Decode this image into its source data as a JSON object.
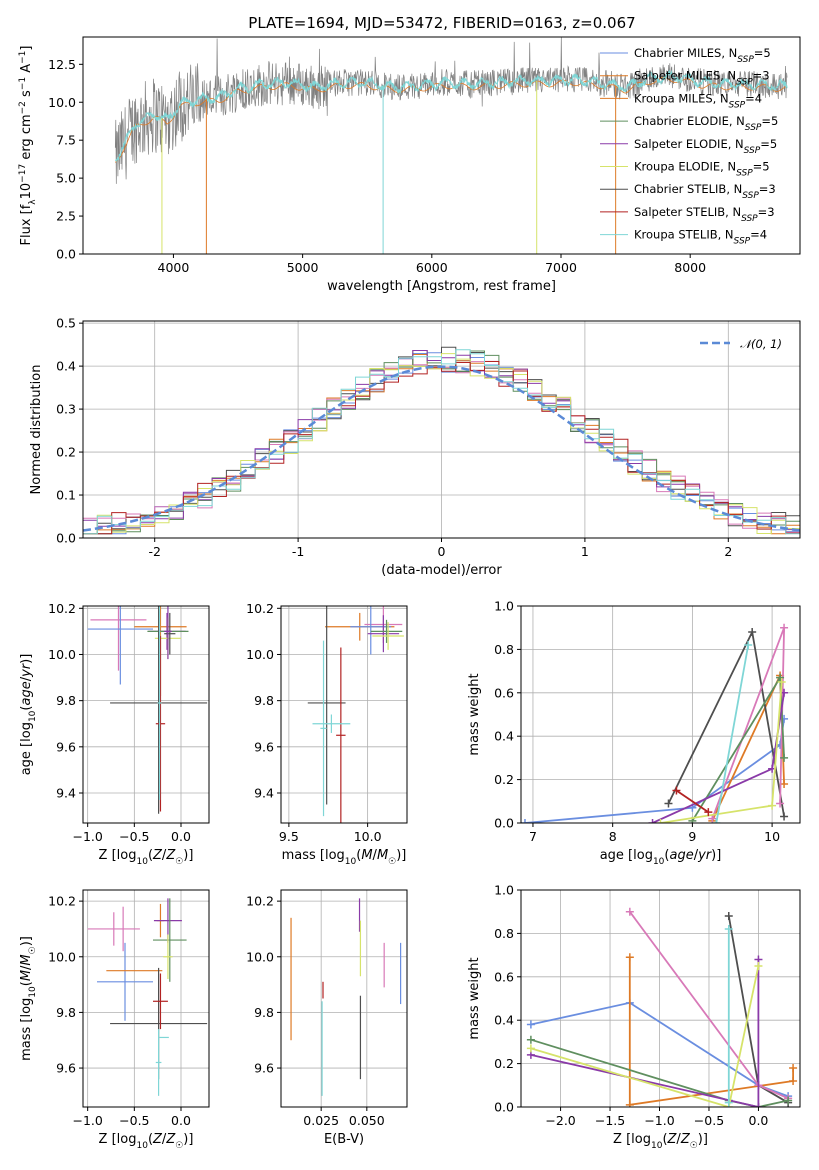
{
  "figure_title": "PLATE=1694, MJD=53472, FIBERID=0163, z=0.067",
  "model_colors": [
    "#6a8ee0",
    "#de7a26",
    "#4f4f4f",
    "#d879b8",
    "#5f8f5f",
    "#8a3aa8",
    "#d6e36a",
    "#b22222",
    "#7fd6d6"
  ],
  "chart_data": [
    {
      "id": "spectrum",
      "type": "line",
      "xlabel": "wavelength [Angstrom, rest frame]",
      "ylabel": "Flux [fλ10⁻¹⁷ erg cm⁻² s⁻¹ A⁻¹]",
      "xlim": [
        3300,
        8850
      ],
      "ylim": [
        0,
        14.3
      ],
      "xticks": [
        4000,
        5000,
        6000,
        7000,
        8000
      ],
      "yticks": [
        0.0,
        2.5,
        5.0,
        7.5,
        10.0,
        12.5
      ],
      "ytick_labels": [
        "0.0",
        "2.5",
        "5.0",
        "7.5",
        "10.0",
        "12.5"
      ],
      "legend": [
        "Chabrier MILES, N_SSP=5",
        "Salpeter MILES, N_SSP=3",
        "Kroupa MILES, N_SSP=4",
        "Chabrier ELODIE, N_SSP=5",
        "Salpeter ELODIE, N_SSP=5",
        "Kroupa ELODIE, N_SSP=5",
        "Chabrier STELIB, N_SSP=3",
        "Salpeter STELIB, N_SSP=3",
        "Kroupa STELIB, N_SSP=4"
      ],
      "legend_position": "top-right",
      "legend_colors": [
        "#6a8ee0",
        "#de7a26",
        "#de7a26",
        "#5f8f5f",
        "#8a3aa8",
        "#d6e36a",
        "#4f4f4f",
        "#b22222",
        "#7fd6d6"
      ],
      "data_color": "#808080",
      "model_color": "#7fd6d6",
      "continuum": [
        [
          3550,
          6.2
        ],
        [
          3700,
          8.5
        ],
        [
          3850,
          9.2
        ],
        [
          3950,
          8.8
        ],
        [
          4050,
          9.9
        ],
        [
          4200,
          10.2
        ],
        [
          4350,
          10.3
        ],
        [
          4500,
          10.9
        ],
        [
          4700,
          11.2
        ],
        [
          4900,
          11.3
        ],
        [
          5100,
          11.0
        ],
        [
          5300,
          11.3
        ],
        [
          5500,
          11.3
        ],
        [
          5700,
          11.0
        ],
        [
          5900,
          11.1
        ],
        [
          6100,
          11.3
        ],
        [
          6300,
          11.2
        ],
        [
          6500,
          11.3
        ],
        [
          6700,
          11.4
        ],
        [
          6900,
          11.4
        ],
        [
          7100,
          11.5
        ],
        [
          7300,
          11.3
        ],
        [
          7500,
          11.0
        ],
        [
          7700,
          11.6
        ],
        [
          7900,
          11.7
        ],
        [
          8100,
          11.3
        ],
        [
          8300,
          11.2
        ],
        [
          8500,
          11.2
        ],
        [
          8700,
          11.1
        ]
      ],
      "absorption_spikes": [
        3911,
        4255,
        5623,
        6812,
        7423
      ]
    },
    {
      "id": "residuals",
      "type": "step",
      "xlabel": "(data-model)/error",
      "ylabel": "Normed distribution",
      "xlim": [
        -2.5,
        2.5
      ],
      "ylim": [
        0,
        0.505
      ],
      "xticks": [
        -2,
        -1,
        0,
        1,
        2
      ],
      "yticks": [
        0.0,
        0.1,
        0.2,
        0.3,
        0.4,
        0.5
      ],
      "ytick_labels": [
        "0.0",
        "0.1",
        "0.2",
        "0.3",
        "0.4",
        "0.5"
      ],
      "legend": [
        "N(0,1)"
      ],
      "legend_position": "top-right",
      "gaussian_color": "#5b8ad6",
      "bin_width": 0.1,
      "bin_edges_range": [
        -2.5,
        2.5
      ]
    },
    {
      "id": "age-vs-Z",
      "type": "errorbar",
      "xlabel": "Z [log10(Z/Z☉)]",
      "ylabel": "age  [log10(age/yr)]",
      "xlim": [
        -1.05,
        0.3
      ],
      "ylim": [
        9.27,
        10.21
      ],
      "xticks": [
        -1.0,
        -0.5,
        0.0
      ],
      "xtick_labels": [
        "−1.0",
        "−0.5",
        "0.0"
      ],
      "yticks": [
        9.4,
        9.6,
        9.8,
        10.0,
        10.2
      ],
      "ytick_labels": [
        "9.4",
        "9.6",
        "9.8",
        "10.0",
        "10.2"
      ],
      "points": [
        {
          "x": -0.67,
          "y": 10.15,
          "xerr": 0.3,
          "yerr": 0.22,
          "c": 3
        },
        {
          "x": -0.65,
          "y": 10.11,
          "xerr": 0.35,
          "yerr": 0.24,
          "c": 0
        },
        {
          "x": -0.22,
          "y": 10.12,
          "xerr": 0.28,
          "yerr": 0.3,
          "c": 1
        },
        {
          "x": -0.15,
          "y": 10.1,
          "xerr": 0.2,
          "yerr": 0.08,
          "c": 5
        },
        {
          "x": -0.14,
          "y": 10.1,
          "xerr": 0.22,
          "yerr": 0.06,
          "c": 4
        },
        {
          "x": -0.14,
          "y": 10.07,
          "xerr": 0.14,
          "yerr": 0.09,
          "c": 6
        },
        {
          "x": -0.12,
          "y": 10.09,
          "xerr": 0.06,
          "yerr": 0.09,
          "c": 2
        },
        {
          "x": -0.14,
          "y": 10.1,
          "xerr": 0.04,
          "yerr": 0.12,
          "c": 5
        },
        {
          "x": -0.24,
          "y": 9.79,
          "xerr": 0.52,
          "yerr": 0.48,
          "c": 2
        },
        {
          "x": -0.22,
          "y": 9.7,
          "xerr": 0.05,
          "yerr": 0.38,
          "c": 7
        },
        {
          "x": -0.23,
          "y": 9.79,
          "xerr": 0.02,
          "yerr": 0.42,
          "c": 8
        }
      ]
    },
    {
      "id": "age-vs-mass",
      "type": "errorbar",
      "xlabel": "mass [log10(M/M☉)]",
      "ylabel": "",
      "xlim": [
        9.45,
        10.25
      ],
      "ylim": [
        9.27,
        10.21
      ],
      "xticks": [
        9.5,
        10.0
      ],
      "xtick_labels": [
        "9.5",
        "10.0"
      ],
      "yticks": [
        9.4,
        9.6,
        9.8,
        10.0,
        10.2
      ],
      "ytick_labels": [
        "9.4",
        "9.6",
        "9.8",
        "10.0",
        "10.2"
      ],
      "points": [
        {
          "x": 9.95,
          "y": 10.12,
          "xerr": 0.22,
          "yerr": 0.06,
          "c": 1
        },
        {
          "x": 10.1,
          "y": 10.13,
          "xerr": 0.12,
          "yerr": 0.08,
          "c": 3
        },
        {
          "x": 10.02,
          "y": 10.12,
          "xerr": 0.13,
          "yerr": 0.12,
          "c": 0
        },
        {
          "x": 10.1,
          "y": 10.09,
          "xerr": 0.1,
          "yerr": 0.08,
          "c": 5
        },
        {
          "x": 10.12,
          "y": 10.1,
          "xerr": 0.1,
          "yerr": 0.05,
          "c": 4
        },
        {
          "x": 10.13,
          "y": 10.08,
          "xerr": 0.1,
          "yerr": 0.06,
          "c": 6
        },
        {
          "x": 9.74,
          "y": 9.79,
          "xerr": 0.12,
          "yerr": 0.44,
          "c": 2
        },
        {
          "x": 9.83,
          "y": 9.65,
          "xerr": 0.03,
          "yerr": 0.38,
          "c": 7
        },
        {
          "x": 9.72,
          "y": 9.68,
          "xerr": 0.02,
          "yerr": 0.38,
          "c": 8
        },
        {
          "x": 9.77,
          "y": 9.7,
          "xerr": 0.12,
          "yerr": 0.04,
          "c": 8
        }
      ]
    },
    {
      "id": "weight-vs-age",
      "type": "line",
      "xlabel": "age  [log10(age/yr)]",
      "ylabel": "mass weight",
      "xlim": [
        6.85,
        10.35
      ],
      "ylim": [
        0,
        1.0
      ],
      "xticks": [
        7,
        8,
        9,
        10
      ],
      "xtick_labels": [
        "7",
        "8",
        "9",
        "10"
      ],
      "yticks": [
        0.0,
        0.2,
        0.4,
        0.6,
        0.8,
        1.0
      ],
      "ytick_labels": [
        "0.0",
        "0.2",
        "0.4",
        "0.6",
        "0.8",
        "1.0"
      ],
      "series": [
        {
          "c": 0,
          "x": [
            6.9,
            9.0,
            10.1,
            10.15
          ],
          "y": [
            0.0,
            0.07,
            0.36,
            0.48
          ]
        },
        {
          "c": 1,
          "x": [
            9.25,
            10.1,
            10.15
          ],
          "y": [
            0.01,
            0.68,
            0.18
          ]
        },
        {
          "c": 2,
          "x": [
            8.7,
            9.75,
            10.15
          ],
          "y": [
            0.09,
            0.88,
            0.03
          ]
        },
        {
          "c": 3,
          "x": [
            9.25,
            10.15,
            10.1
          ],
          "y": [
            0.02,
            0.9,
            0.09
          ]
        },
        {
          "c": 4,
          "x": [
            9.0,
            10.1,
            10.15
          ],
          "y": [
            0.01,
            0.67,
            0.3
          ]
        },
        {
          "c": 5,
          "x": [
            8.5,
            10.0,
            10.15
          ],
          "y": [
            0.0,
            0.25,
            0.6
          ]
        },
        {
          "c": 6,
          "x": [
            8.6,
            10.0,
            10.12
          ],
          "y": [
            0.0,
            0.08,
            0.65
          ]
        },
        {
          "c": 7,
          "x": [
            8.8,
            9.2
          ],
          "y": [
            0.15,
            0.05
          ]
        },
        {
          "c": 8,
          "x": [
            9.3,
            9.7
          ],
          "y": [
            0.0,
            0.82
          ]
        }
      ]
    },
    {
      "id": "mass-vs-Z",
      "type": "errorbar",
      "xlabel": "Z [log10(Z/Z☉)]",
      "ylabel": "mass [log10(M/M☉)]",
      "xlim": [
        -1.05,
        0.3
      ],
      "ylim": [
        9.46,
        10.24
      ],
      "xticks": [
        -1.0,
        -0.5,
        0.0
      ],
      "xtick_labels": [
        "−1.0",
        "−0.5",
        "0.0"
      ],
      "yticks": [
        9.6,
        9.8,
        10.0,
        10.2
      ],
      "ytick_labels": [
        "9.6",
        "9.8",
        "10.0",
        "10.2"
      ],
      "points": [
        {
          "x": -0.72,
          "y": 10.1,
          "xerr": 0.28,
          "yerr": 0.06,
          "c": 3
        },
        {
          "x": -0.62,
          "y": 10.1,
          "xerr": 0.0,
          "yerr": 0.08,
          "c": 3
        },
        {
          "x": -0.6,
          "y": 9.91,
          "xerr": 0.3,
          "yerr": 0.14,
          "c": 0
        },
        {
          "x": -0.5,
          "y": 9.95,
          "xerr": 0.3,
          "yerr": 0.0,
          "c": 1
        },
        {
          "x": -0.22,
          "y": 10.13,
          "xerr": 0.04,
          "yerr": 0.06,
          "c": 1
        },
        {
          "x": -0.14,
          "y": 10.13,
          "xerr": 0.15,
          "yerr": 0.08,
          "c": 5
        },
        {
          "x": -0.12,
          "y": 10.06,
          "xerr": 0.18,
          "yerr": 0.15,
          "c": 4
        },
        {
          "x": -0.14,
          "y": 10.0,
          "xerr": 0.05,
          "yerr": 0.08,
          "c": 6
        },
        {
          "x": -0.24,
          "y": 9.76,
          "xerr": 0.52,
          "yerr": 0.2,
          "c": 2
        },
        {
          "x": -0.22,
          "y": 9.84,
          "xerr": 0.08,
          "yerr": 0.1,
          "c": 7
        },
        {
          "x": -0.24,
          "y": 9.62,
          "xerr": 0.03,
          "yerr": 0.12,
          "c": 8
        },
        {
          "x": -0.18,
          "y": 9.71,
          "xerr": 0.05,
          "yerr": 0.0,
          "c": 8
        }
      ]
    },
    {
      "id": "mass-vs-EBV",
      "type": "errorbar",
      "xlabel": "E(B-V)",
      "ylabel": "",
      "xlim": [
        0.003,
        0.072
      ],
      "ylim": [
        9.46,
        10.24
      ],
      "xticks": [
        0.025,
        0.05
      ],
      "xtick_labels": [
        "0.025",
        "0.050"
      ],
      "yticks": [
        9.6,
        9.8,
        10.0,
        10.2
      ],
      "ytick_labels": [
        "9.6",
        "9.8",
        "10.0",
        "10.2"
      ],
      "points": [
        {
          "x": 0.0085,
          "y": 9.92,
          "xerr": 0.0,
          "yerr": 0.22,
          "c": 1
        },
        {
          "x": 0.026,
          "y": 9.88,
          "xerr": 0.0,
          "yerr": 0.03,
          "c": 7
        },
        {
          "x": 0.0255,
          "y": 9.67,
          "xerr": 0.0,
          "yerr": 0.17,
          "c": 8
        },
        {
          "x": 0.046,
          "y": 10.15,
          "xerr": 0.0,
          "yerr": 0.06,
          "c": 5
        },
        {
          "x": 0.0465,
          "y": 10.03,
          "xerr": 0.0,
          "yerr": 0.1,
          "c": 6
        },
        {
          "x": 0.0465,
          "y": 9.71,
          "xerr": 0.0,
          "yerr": 0.15,
          "c": 2
        },
        {
          "x": 0.0595,
          "y": 9.97,
          "xerr": 0.0,
          "yerr": 0.08,
          "c": 3
        },
        {
          "x": 0.0685,
          "y": 9.94,
          "xerr": 0.0,
          "yerr": 0.11,
          "c": 0
        }
      ]
    },
    {
      "id": "weight-vs-Z",
      "type": "line",
      "xlabel": "Z [log10(Z/Z☉)]",
      "ylabel": "mass weight",
      "xlim": [
        -2.4,
        0.42
      ],
      "ylim": [
        0,
        1.0
      ],
      "xticks": [
        -2.0,
        -1.5,
        -1.0,
        -0.5,
        0.0
      ],
      "xtick_labels": [
        "−2.0",
        "−1.5",
        "−1.0",
        "−0.5",
        "0.0"
      ],
      "yticks": [
        0.0,
        0.2,
        0.4,
        0.6,
        0.8,
        1.0
      ],
      "ytick_labels": [
        "0.0",
        "0.2",
        "0.4",
        "0.6",
        "0.8",
        "1.0"
      ],
      "series": [
        {
          "c": 0,
          "x": [
            -2.3,
            -1.3,
            0.0,
            0.3
          ],
          "y": [
            0.38,
            0.48,
            0.1,
            0.05
          ]
        },
        {
          "c": 1,
          "x": [
            -1.3,
            -1.3,
            0.35,
            0.35
          ],
          "y": [
            0.69,
            0.01,
            0.12,
            0.18
          ]
        },
        {
          "c": 2,
          "x": [
            -0.3,
            0.0,
            0.3
          ],
          "y": [
            0.88,
            0.1,
            0.02
          ]
        },
        {
          "c": 3,
          "x": [
            -1.3,
            0.0,
            0.3
          ],
          "y": [
            0.9,
            0.1,
            0.04
          ]
        },
        {
          "c": 4,
          "x": [
            -2.3,
            -0.3,
            0.0,
            0.3
          ],
          "y": [
            0.31,
            0.03,
            0.0,
            0.03
          ]
        },
        {
          "c": 5,
          "x": [
            -2.3,
            0.0,
            0.0
          ],
          "y": [
            0.24,
            0.0,
            0.68
          ]
        },
        {
          "c": 6,
          "x": [
            -2.3,
            -0.3,
            0.0
          ],
          "y": [
            0.27,
            0.0,
            0.65
          ]
        },
        {
          "c": 8,
          "x": [
            -0.3,
            -0.3
          ],
          "y": [
            0.82,
            0.02
          ]
        }
      ]
    }
  ]
}
